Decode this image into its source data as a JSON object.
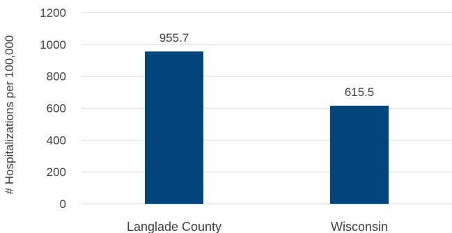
{
  "chart_data": {
    "type": "bar",
    "title": "",
    "xlabel": "",
    "ylabel": "# Hospitalizations per 100,000",
    "categories": [
      "Langlade County",
      "Wisconsin"
    ],
    "values": [
      955.7,
      615.5
    ],
    "data_labels": [
      "955.7",
      "615.5"
    ],
    "ylim": [
      0,
      1200
    ],
    "yticks": [
      0,
      200,
      400,
      600,
      800,
      1000,
      1200
    ],
    "grid": true,
    "legend": "none",
    "bar_color": "#00457c"
  }
}
